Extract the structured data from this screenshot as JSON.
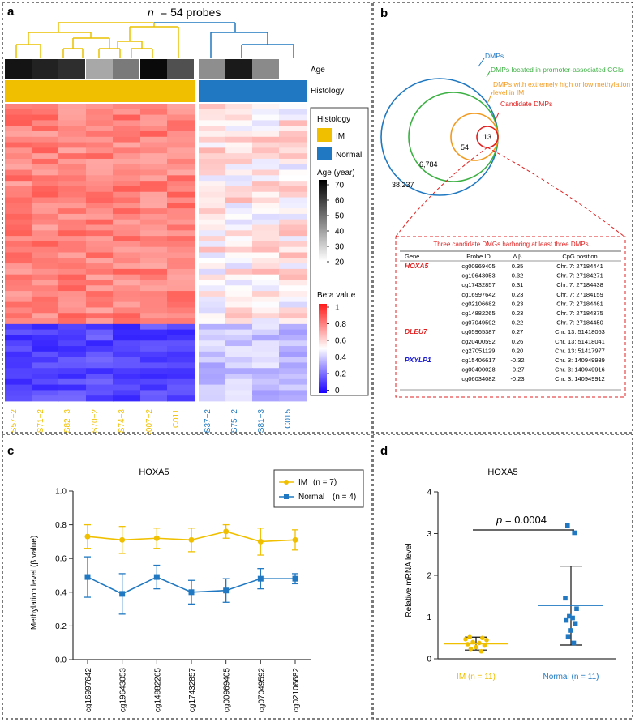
{
  "panels": {
    "a": {
      "label": "a",
      "title_n": "n",
      "title_rest": "= 54 probes",
      "row_labels": {
        "age": "Age",
        "histology": "Histology"
      },
      "legend": {
        "histology_title": "Histology",
        "histology_items": [
          {
            "label": "IM",
            "color": "#f0c000"
          },
          {
            "label": "Normal",
            "color": "#1f78c1"
          }
        ],
        "age_title": "Age (year)",
        "age_ticks": [
          "70",
          "60",
          "50",
          "40",
          "30",
          "20"
        ],
        "beta_title": "Beta value",
        "beta_ticks": [
          "1",
          "0.8",
          "0.6",
          "0.4",
          "0.2",
          "0"
        ]
      },
      "samples_im": [
        "S57−2",
        "S71−2",
        "S82−3",
        "S70−2",
        "S74−3",
        "C007−2",
        "C011"
      ],
      "samples_normal": [
        "S37−2",
        "S75−2",
        "S81−3",
        "C015"
      ],
      "age_gray": [
        "#141414",
        "#222222",
        "#2e2e2e",
        "#a8a8a8",
        "#7a7a7a",
        "#0a0a0a",
        "#505050",
        "#8e8e8e",
        "#1a1a1a",
        "#8a8a8a",
        "#ffffff"
      ]
    },
    "b": {
      "label": "b",
      "venn_labels": {
        "dmps": "DMPs",
        "cgis": "DMPs located in promoter-associated CGIs",
        "extreme1": "DMPs with extremely high or low methylation",
        "extreme2": "level in IM",
        "candidate": "Candidate DMPs"
      },
      "venn_counts": {
        "outer": "38,237",
        "second": "6,784",
        "third": "54",
        "inner": "13"
      },
      "table": {
        "title": "Three candidate DMGs harboring at least three DMPs",
        "headers": [
          "Gene",
          "Probe ID",
          "Δ β",
          "CpG position"
        ],
        "rows": [
          {
            "gene": "HOXA5",
            "probe": "cg00969405",
            "delta": "0.35",
            "pos": "Chr. 7: 27184441"
          },
          {
            "gene": "",
            "probe": "cg19643053",
            "delta": "0.32",
            "pos": "Chr. 7: 27184271"
          },
          {
            "gene": "",
            "probe": "cg17432857",
            "delta": "0.31",
            "pos": "Chr. 7: 27184438"
          },
          {
            "gene": "",
            "probe": "cg16997642",
            "delta": "0.23",
            "pos": "Chr. 7: 27184159"
          },
          {
            "gene": "",
            "probe": "cg02106682",
            "delta": "0.23",
            "pos": "Chr. 7: 27184461"
          },
          {
            "gene": "",
            "probe": "cg14882265",
            "delta": "0.23",
            "pos": "Chr. 7: 27184375"
          },
          {
            "gene": "",
            "probe": "cg07049592",
            "delta": "0.22",
            "pos": "Chr. 7: 27184450"
          },
          {
            "gene": "DLEU7",
            "probe": "cg05965387",
            "delta": "0.27",
            "pos": "Chr. 13: 51418053"
          },
          {
            "gene": "",
            "probe": "cg20400592",
            "delta": "0.26",
            "pos": "Chr. 13: 51418041"
          },
          {
            "gene": "",
            "probe": "cg27051129",
            "delta": "0.20",
            "pos": "Chr. 13: 51417977"
          },
          {
            "gene": "PXYLP1",
            "probe": "cg15406617",
            "delta": "-0.32",
            "pos": "Chr. 3: 140949939"
          },
          {
            "gene": "",
            "probe": "cg00400028",
            "delta": "-0.27",
            "pos": "Chr. 3: 140949916"
          },
          {
            "gene": "",
            "probe": "cg06034082",
            "delta": "-0.23",
            "pos": "Chr. 3: 140949912"
          }
        ]
      }
    },
    "c": {
      "label": "c"
    },
    "d": {
      "label": "d"
    }
  },
  "colors": {
    "im": "#f0c000",
    "normal": "#1f78c1",
    "red": "#e02020",
    "green": "#3cb043",
    "orange": "#f29a1f",
    "blue_gene": "#1a1ad0"
  },
  "chart_data": [
    {
      "type": "line",
      "title": "HOXA5",
      "xlabel": "",
      "ylabel": "Methylation level (β value)",
      "ylim": [
        0,
        1.0
      ],
      "yticks": [
        "0.0",
        "0.2",
        "0.4",
        "0.6",
        "0.8",
        "1.0"
      ],
      "categories": [
        "cg16997642",
        "cg19643053",
        "cg14882265",
        "cg17432857",
        "cg00969405",
        "cg07049592",
        "cg02106682"
      ],
      "series": [
        {
          "name": "IM",
          "n_label": "(n = 7)",
          "values": [
            0.73,
            0.71,
            0.72,
            0.71,
            0.76,
            0.7,
            0.71
          ],
          "errors": [
            0.07,
            0.08,
            0.06,
            0.07,
            0.04,
            0.08,
            0.06
          ]
        },
        {
          "name": "Normal",
          "n_label": "(n = 4)",
          "values": [
            0.49,
            0.39,
            0.49,
            0.4,
            0.41,
            0.48,
            0.48
          ],
          "errors": [
            0.12,
            0.12,
            0.07,
            0.07,
            0.07,
            0.06,
            0.03
          ]
        }
      ]
    },
    {
      "type": "scatter",
      "title": "HOXA5",
      "ylabel": "Relative mRNA level",
      "ylim": [
        0,
        4
      ],
      "yticks": [
        "0",
        "1",
        "2",
        "3",
        "4"
      ],
      "pvalue_label": "p",
      "pvalue_text": "= 0.0004",
      "groups": [
        {
          "name": "IM",
          "n_label": "(n = 11)",
          "mean": 0.36,
          "sd_low": 0.21,
          "sd_high": 0.52,
          "points": [
            0.52,
            0.5,
            0.47,
            0.45,
            0.4,
            0.38,
            0.35,
            0.32,
            0.28,
            0.24,
            0.18
          ]
        },
        {
          "name": "Normal",
          "n_label": "(n = 11)",
          "mean": 1.28,
          "sd_low": 0.33,
          "sd_high": 2.22,
          "points": [
            3.2,
            3.02,
            1.45,
            1.2,
            1.02,
            0.98,
            0.92,
            0.85,
            0.68,
            0.52,
            0.38
          ]
        }
      ]
    }
  ]
}
